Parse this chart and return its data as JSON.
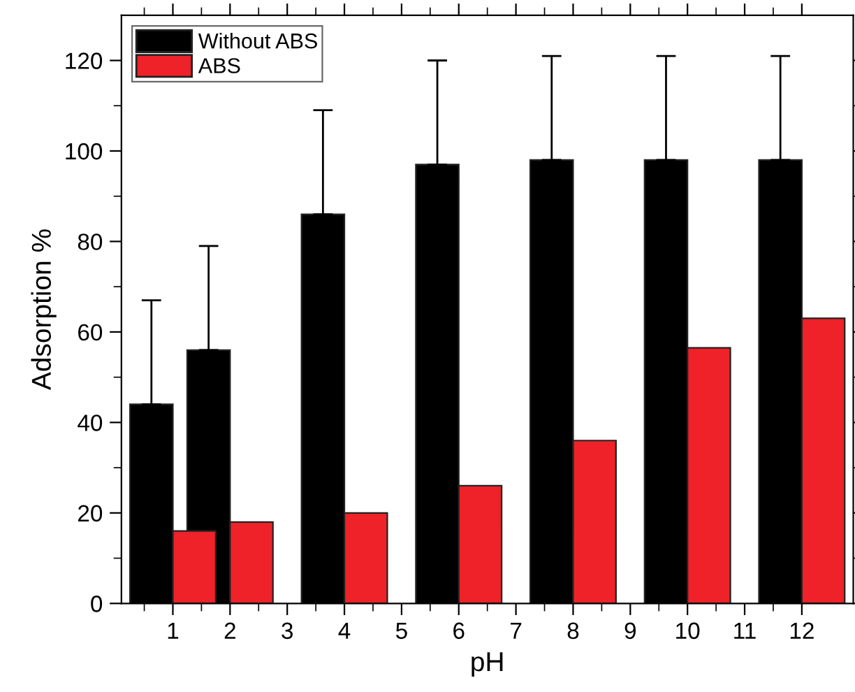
{
  "chart_data": {
    "type": "bar",
    "xlabel": "pH",
    "ylabel": "Adsorption %",
    "x": [
      1,
      2,
      4,
      6,
      8,
      10,
      12
    ],
    "series": [
      {
        "name": "Without ABS",
        "color": "#000000",
        "values": [
          44,
          56,
          86,
          97,
          98,
          98,
          98
        ],
        "errors": [
          [
            44,
            67
          ],
          [
            56,
            79
          ],
          [
            86,
            109
          ],
          [
            97,
            120
          ],
          [
            98,
            121
          ],
          [
            98,
            121
          ],
          [
            98,
            121
          ]
        ]
      },
      {
        "name": "ABS",
        "color": "#ee2228",
        "values": [
          16,
          18,
          20,
          26,
          36,
          56.5,
          63
        ]
      }
    ],
    "xlim": [
      0.1,
      12.9
    ],
    "xticks": [
      1,
      2,
      3,
      4,
      5,
      6,
      7,
      8,
      9,
      10,
      11,
      12
    ],
    "ylim": [
      0,
      130
    ],
    "yticks": [
      0,
      20,
      40,
      60,
      80,
      100,
      120
    ],
    "legend": "top left",
    "grid": false
  }
}
